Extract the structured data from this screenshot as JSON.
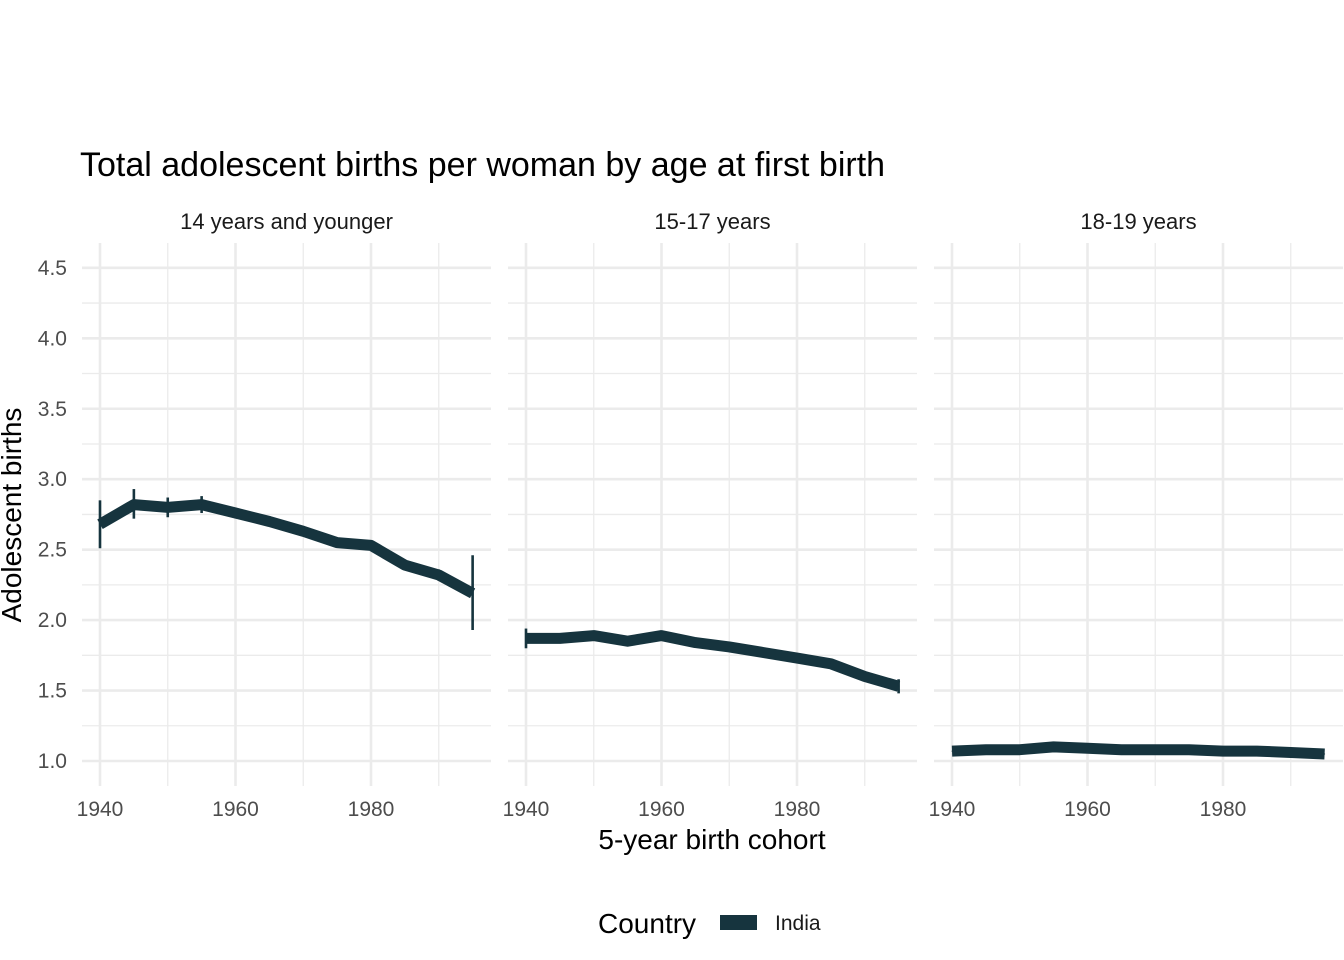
{
  "chart_data": {
    "type": "line",
    "title": "Total adolescent births per woman by age at first birth",
    "xlabel": "5-year birth cohort",
    "ylabel": "Adolescent births",
    "xlim": [
      1940,
      1995
    ],
    "ylim": [
      0.9,
      4.6
    ],
    "x_ticks": [
      1940,
      1960,
      1980
    ],
    "y_ticks": [
      1.0,
      1.5,
      2.0,
      2.5,
      3.0,
      3.5,
      4.0,
      4.5
    ],
    "y_tick_labels": [
      "1.0",
      "1.5",
      "2.0",
      "2.5",
      "3.0",
      "3.5",
      "4.0",
      "4.5"
    ],
    "x_tick_labels": [
      "1940",
      "1960",
      "1980"
    ],
    "legend": {
      "title": "Country",
      "position": "bottom",
      "entries": [
        "India"
      ]
    },
    "colors": {
      "India": "#16343e",
      "grid": "#ebebeb"
    },
    "panels": [
      {
        "label": "14 years and younger",
        "series": [
          {
            "name": "India",
            "x": [
              1940,
              1945,
              1950,
              1955,
              1960,
              1965,
              1970,
              1975,
              1980,
              1985,
              1990,
              1995
            ],
            "values": [
              2.68,
              2.82,
              2.8,
              2.82,
              2.76,
              2.7,
              2.63,
              2.55,
              2.53,
              2.39,
              2.32,
              2.19
            ],
            "error_low": [
              2.51,
              2.72,
              2.73,
              2.76,
              null,
              null,
              null,
              null,
              null,
              null,
              2.28,
              1.93
            ],
            "error_high": [
              2.85,
              2.93,
              2.87,
              2.88,
              null,
              null,
              null,
              null,
              null,
              null,
              2.36,
              2.46
            ]
          }
        ]
      },
      {
        "label": "15-17 years",
        "series": [
          {
            "name": "India",
            "x": [
              1940,
              1945,
              1950,
              1955,
              1960,
              1965,
              1970,
              1975,
              1980,
              1985,
              1990,
              1995
            ],
            "values": [
              1.87,
              1.87,
              1.89,
              1.85,
              1.89,
              1.84,
              1.81,
              1.77,
              1.73,
              1.69,
              1.6,
              1.53
            ],
            "error_low": [
              1.8,
              null,
              null,
              null,
              null,
              null,
              null,
              null,
              null,
              null,
              null,
              1.48
            ],
            "error_high": [
              1.94,
              null,
              null,
              null,
              null,
              null,
              null,
              null,
              null,
              null,
              null,
              1.58
            ]
          }
        ]
      },
      {
        "label": "18-19 years",
        "series": [
          {
            "name": "India",
            "x": [
              1940,
              1945,
              1950,
              1955,
              1960,
              1965,
              1970,
              1975,
              1980,
              1985,
              1990,
              1995
            ],
            "values": [
              1.07,
              1.08,
              1.08,
              1.1,
              1.09,
              1.08,
              1.08,
              1.08,
              1.07,
              1.07,
              1.06,
              1.05
            ],
            "error_low": [
              null,
              null,
              null,
              null,
              null,
              null,
              null,
              null,
              null,
              null,
              null,
              null
            ],
            "error_high": [
              null,
              null,
              null,
              null,
              null,
              null,
              null,
              null,
              null,
              null,
              null,
              null
            ]
          }
        ]
      }
    ]
  }
}
